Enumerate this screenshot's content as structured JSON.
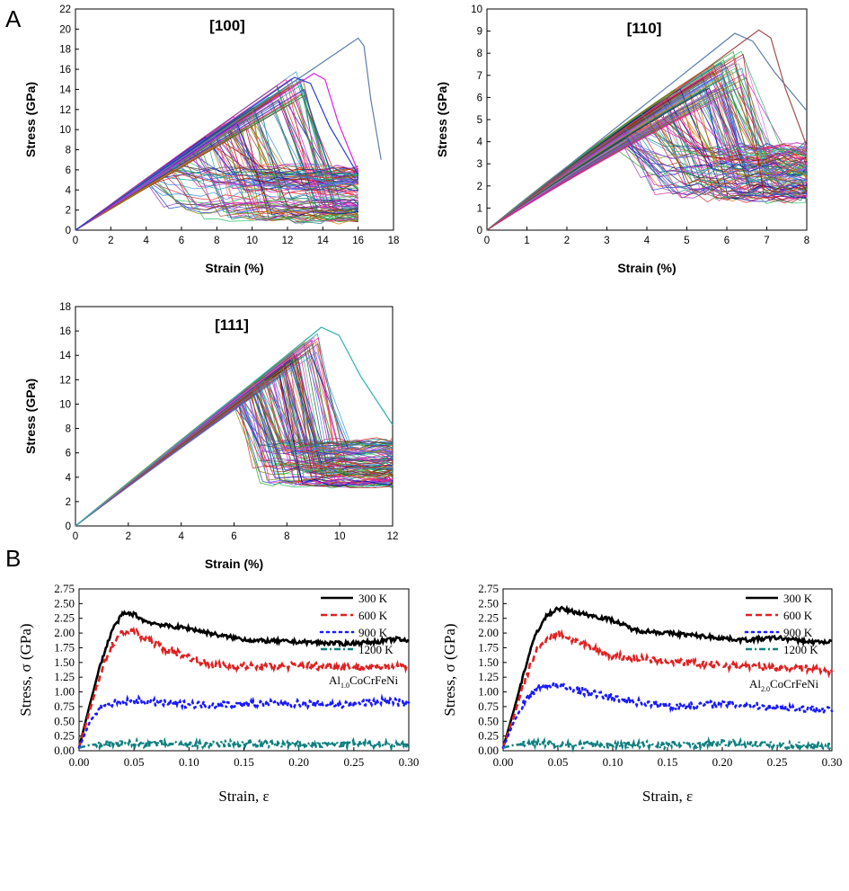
{
  "panel_labels": [
    "A",
    "B"
  ],
  "chart_data": [
    {
      "type": "line",
      "title": "[100]",
      "xlabel": "Strain (%)",
      "ylabel": "Stress (GPa)",
      "xlim": [
        0,
        18
      ],
      "ylim": [
        0,
        22
      ],
      "xticks": [
        "0",
        "2",
        "4",
        "6",
        "8",
        "10",
        "12",
        "14",
        "16",
        "18"
      ],
      "yticks": [
        "0",
        "2",
        "4",
        "6",
        "8",
        "10",
        "12",
        "14",
        "16",
        "18",
        "20",
        "22"
      ],
      "grid": false,
      "series_count_approx": 120,
      "highlighted_curves": [
        {
          "peak_x": 16.0,
          "peak_y": 19.1,
          "end_x": 17.3,
          "end_y": 7.0,
          "color": "#5b7fa8"
        },
        {
          "peak_x": 13.5,
          "peak_y": 15.6,
          "end_x": 16.0,
          "end_y": 5.8,
          "color": "#e020e0"
        },
        {
          "peak_x": 12.4,
          "peak_y": 15.2,
          "end_x": 16.0,
          "end_y": 5.5,
          "color": "#2040d0"
        }
      ]
    },
    {
      "type": "line",
      "title": "[110]",
      "xlabel": "Strain (%)",
      "ylabel": "Stress (GPa)",
      "xlim": [
        0,
        8
      ],
      "ylim": [
        0,
        10
      ],
      "xticks": [
        "0",
        "1",
        "2",
        "3",
        "4",
        "5",
        "6",
        "7",
        "8"
      ],
      "yticks": [
        "0",
        "1",
        "2",
        "3",
        "4",
        "5",
        "6",
        "7",
        "8",
        "9",
        "10"
      ],
      "grid": false,
      "series_count_approx": 120,
      "highlighted_curves": [
        {
          "peak_x": 6.2,
          "peak_y": 8.9,
          "end_x": 8.0,
          "end_y": 5.4,
          "color": "#5b7fa8"
        },
        {
          "peak_x": 6.8,
          "peak_y": 9.05,
          "end_x": 8.0,
          "end_y": 3.8,
          "color": "#a05050"
        }
      ]
    },
    {
      "type": "line",
      "title": "[111]",
      "xlabel": "Strain (%)",
      "ylabel": "Stress (GPa)",
      "xlim": [
        0,
        12
      ],
      "ylim": [
        0,
        18
      ],
      "xticks": [
        "0",
        "2",
        "4",
        "6",
        "8",
        "10",
        "12"
      ],
      "yticks": [
        "0",
        "2",
        "4",
        "6",
        "8",
        "10",
        "12",
        "14",
        "16",
        "18"
      ],
      "grid": false,
      "series_count_approx": 120,
      "highlighted_curves": [
        {
          "peak_x": 9.3,
          "peak_y": 16.3,
          "end_x": 12.0,
          "end_y": 8.3,
          "color": "#30b0b0"
        }
      ]
    },
    {
      "type": "scatter",
      "xlabel": "Strain, ε",
      "ylabel": "Stress, σ (GPa)",
      "annotation": {
        "pre": "Al",
        "sub": "1.0",
        "post": "CoCrFeNi"
      },
      "xlim": [
        0,
        0.3
      ],
      "ylim": [
        0,
        2.75
      ],
      "xticks": [
        "0.00",
        "0.05",
        "0.10",
        "0.15",
        "0.20",
        "0.25",
        "0.30"
      ],
      "yticks": [
        "0.00",
        "0.25",
        "0.50",
        "0.75",
        "1.00",
        "1.25",
        "1.50",
        "1.75",
        "2.00",
        "2.25",
        "2.50",
        "2.75"
      ],
      "legend_position": "top-right",
      "series": [
        {
          "name": "300 K",
          "color": "#000000",
          "style": "solid",
          "points": [
            [
              0.0,
              0.05
            ],
            [
              0.01,
              0.8
            ],
            [
              0.02,
              1.5
            ],
            [
              0.03,
              2.05
            ],
            [
              0.04,
              2.33
            ],
            [
              0.05,
              2.32
            ],
            [
              0.06,
              2.2
            ],
            [
              0.08,
              2.12
            ],
            [
              0.1,
              2.08
            ],
            [
              0.13,
              1.95
            ],
            [
              0.16,
              1.87
            ],
            [
              0.2,
              1.85
            ],
            [
              0.24,
              1.82
            ],
            [
              0.27,
              1.85
            ],
            [
              0.29,
              1.9
            ],
            [
              0.3,
              1.85
            ]
          ]
        },
        {
          "name": "600 K",
          "color": "#e02020",
          "style": "dashed",
          "points": [
            [
              0.0,
              0.05
            ],
            [
              0.01,
              0.7
            ],
            [
              0.02,
              1.35
            ],
            [
              0.03,
              1.8
            ],
            [
              0.04,
              2.03
            ],
            [
              0.05,
              2.02
            ],
            [
              0.06,
              1.9
            ],
            [
              0.08,
              1.72
            ],
            [
              0.1,
              1.6
            ],
            [
              0.12,
              1.45
            ],
            [
              0.16,
              1.43
            ],
            [
              0.2,
              1.45
            ],
            [
              0.24,
              1.42
            ],
            [
              0.27,
              1.42
            ],
            [
              0.3,
              1.45
            ]
          ]
        },
        {
          "name": "900 K",
          "color": "#1a1aff",
          "style": "dotted",
          "points": [
            [
              0.0,
              0.05
            ],
            [
              0.01,
              0.5
            ],
            [
              0.02,
              0.75
            ],
            [
              0.03,
              0.8
            ],
            [
              0.05,
              0.85
            ],
            [
              0.08,
              0.8
            ],
            [
              0.12,
              0.78
            ],
            [
              0.16,
              0.8
            ],
            [
              0.2,
              0.8
            ],
            [
              0.24,
              0.78
            ],
            [
              0.28,
              0.85
            ],
            [
              0.3,
              0.8
            ]
          ]
        },
        {
          "name": "1200 K",
          "color": "#108080",
          "style": "dashdot",
          "points": [
            [
              0.0,
              0.05
            ],
            [
              0.01,
              0.1
            ],
            [
              0.03,
              0.12
            ],
            [
              0.06,
              0.12
            ],
            [
              0.1,
              0.1
            ],
            [
              0.15,
              0.12
            ],
            [
              0.2,
              0.1
            ],
            [
              0.25,
              0.12
            ],
            [
              0.3,
              0.1
            ]
          ]
        }
      ]
    },
    {
      "type": "scatter",
      "xlabel": "Strain, ε",
      "ylabel": "Stress, σ (GPa)",
      "annotation": {
        "pre": "Al",
        "sub": "2.0",
        "post": "CoCrFeNi"
      },
      "xlim": [
        0,
        0.3
      ],
      "ylim": [
        0,
        2.75
      ],
      "xticks": [
        "0.00",
        "0.05",
        "0.10",
        "0.15",
        "0.20",
        "0.25",
        "0.30"
      ],
      "yticks": [
        "0.00",
        "0.25",
        "0.50",
        "0.75",
        "1.00",
        "1.25",
        "1.50",
        "1.75",
        "2.00",
        "2.25",
        "2.50",
        "2.75"
      ],
      "legend_position": "top-right",
      "series": [
        {
          "name": "300 K",
          "color": "#000000",
          "style": "solid",
          "points": [
            [
              0.0,
              0.05
            ],
            [
              0.01,
              0.7
            ],
            [
              0.02,
              1.4
            ],
            [
              0.03,
              2.0
            ],
            [
              0.04,
              2.3
            ],
            [
              0.05,
              2.42
            ],
            [
              0.06,
              2.38
            ],
            [
              0.08,
              2.3
            ],
            [
              0.1,
              2.22
            ],
            [
              0.12,
              2.05
            ],
            [
              0.15,
              2.0
            ],
            [
              0.18,
              1.95
            ],
            [
              0.22,
              1.88
            ],
            [
              0.25,
              1.92
            ],
            [
              0.28,
              1.85
            ],
            [
              0.3,
              1.85
            ]
          ]
        },
        {
          "name": "600 K",
          "color": "#e02020",
          "style": "dashed",
          "points": [
            [
              0.0,
              0.05
            ],
            [
              0.01,
              0.6
            ],
            [
              0.02,
              1.2
            ],
            [
              0.03,
              1.7
            ],
            [
              0.04,
              1.9
            ],
            [
              0.05,
              2.0
            ],
            [
              0.06,
              1.92
            ],
            [
              0.08,
              1.75
            ],
            [
              0.1,
              1.62
            ],
            [
              0.13,
              1.55
            ],
            [
              0.16,
              1.5
            ],
            [
              0.2,
              1.45
            ],
            [
              0.24,
              1.42
            ],
            [
              0.27,
              1.42
            ],
            [
              0.3,
              1.35
            ]
          ]
        },
        {
          "name": "900 K",
          "color": "#1a1aff",
          "style": "dotted",
          "points": [
            [
              0.0,
              0.05
            ],
            [
              0.01,
              0.5
            ],
            [
              0.02,
              0.85
            ],
            [
              0.03,
              1.05
            ],
            [
              0.04,
              1.12
            ],
            [
              0.05,
              1.1
            ],
            [
              0.07,
              1.02
            ],
            [
              0.1,
              0.9
            ],
            [
              0.13,
              0.8
            ],
            [
              0.16,
              0.75
            ],
            [
              0.2,
              0.8
            ],
            [
              0.24,
              0.75
            ],
            [
              0.27,
              0.72
            ],
            [
              0.3,
              0.7
            ]
          ]
        },
        {
          "name": "1200 K",
          "color": "#108080",
          "style": "dashdot",
          "points": [
            [
              0.0,
              0.05
            ],
            [
              0.01,
              0.1
            ],
            [
              0.03,
              0.12
            ],
            [
              0.06,
              0.1
            ],
            [
              0.1,
              0.1
            ],
            [
              0.15,
              0.1
            ],
            [
              0.2,
              0.12
            ],
            [
              0.25,
              0.1
            ],
            [
              0.3,
              0.08
            ]
          ]
        }
      ]
    }
  ]
}
